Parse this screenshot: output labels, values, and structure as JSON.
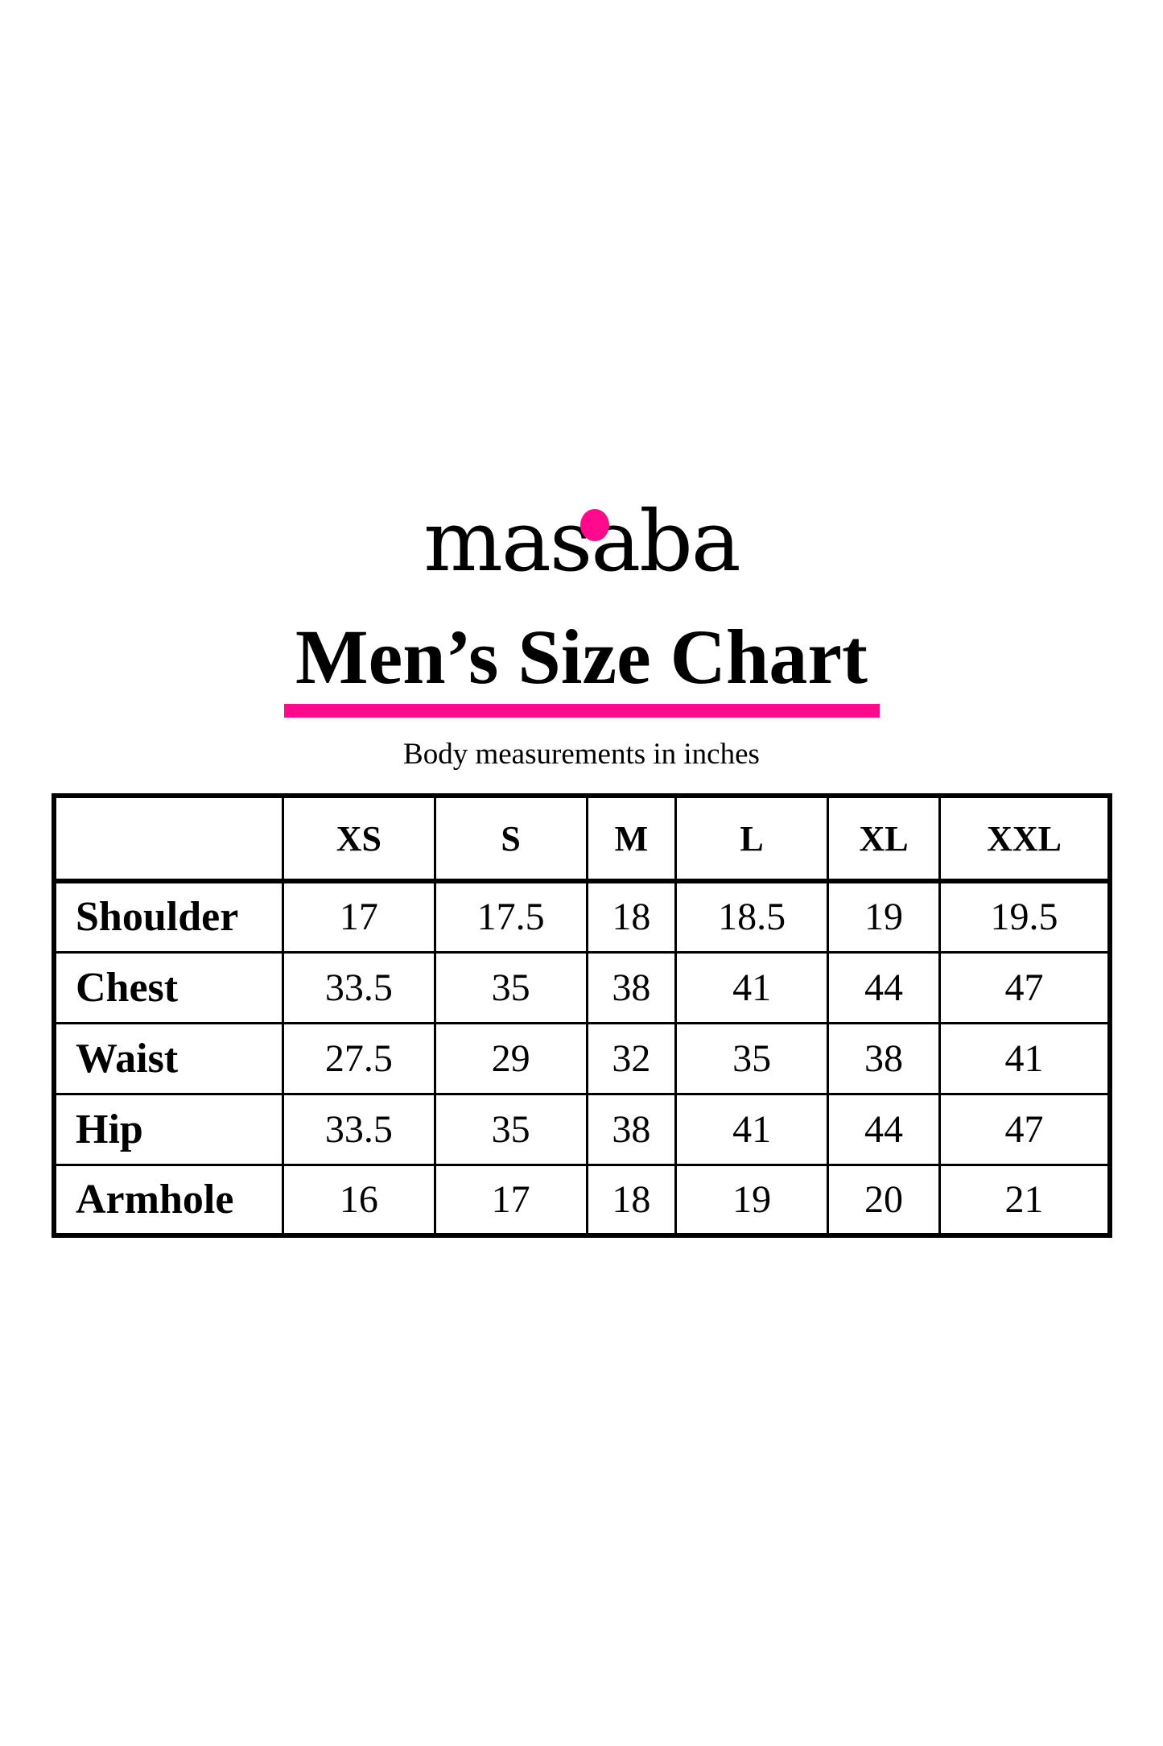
{
  "brand": {
    "logo_text": "masaba",
    "accent_color": "#FF0A8C"
  },
  "title": "Men’s Size Chart",
  "subtitle": "Body measurements in inches",
  "table": {
    "columns": [
      "",
      "XS",
      "S",
      "M",
      "L",
      "XL",
      "XXL"
    ],
    "rows": [
      {
        "label": "Shoulder",
        "values": [
          "17",
          "17.5",
          "18",
          "18.5",
          "19",
          "19.5"
        ]
      },
      {
        "label": "Chest",
        "values": [
          "33.5",
          "35",
          "38",
          "41",
          "44",
          "47"
        ]
      },
      {
        "label": "Waist",
        "values": [
          "27.5",
          "29",
          "32",
          "35",
          "38",
          "41"
        ]
      },
      {
        "label": "Hip",
        "values": [
          "33.5",
          "35",
          "38",
          "41",
          "44",
          "47"
        ]
      },
      {
        "label": "Armhole",
        "values": [
          "16",
          "17",
          "18",
          "19",
          "20",
          "21"
        ]
      }
    ]
  }
}
